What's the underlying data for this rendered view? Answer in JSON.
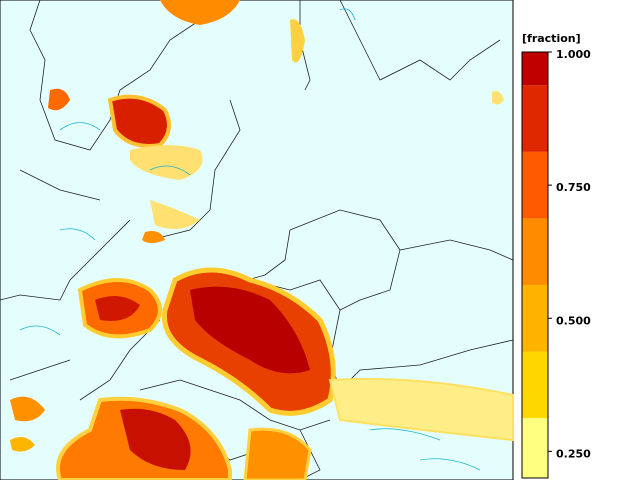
{
  "colorbar": {
    "unit_label": "[fraction]",
    "range": [
      0.2,
      1.0
    ],
    "bins": [
      0.2,
      0.3125,
      0.4375,
      0.5625,
      0.6875,
      0.8125,
      0.9375,
      1.0
    ],
    "colors": [
      "#ffff80",
      "#ffd800",
      "#ffb400",
      "#ff8c00",
      "#ff5a00",
      "#e02800",
      "#c00000"
    ],
    "ticks": [
      {
        "value": 1.0,
        "label": "1.000"
      },
      {
        "value": 0.75,
        "label": "0.750"
      },
      {
        "value": 0.5,
        "label": "0.500"
      },
      {
        "value": 0.25,
        "label": "0.250"
      }
    ]
  }
}
